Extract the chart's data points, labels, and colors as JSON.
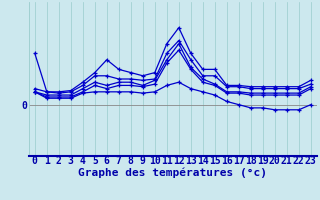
{
  "title": "",
  "xlabel": "Graphe des températures (°c)",
  "ylabel": "",
  "background_color": "#cce8ee",
  "line_color": "#0000cc",
  "grid_color": "#99cccc",
  "axis_color": "#0000aa",
  "x": [
    0,
    1,
    2,
    3,
    4,
    5,
    6,
    7,
    8,
    9,
    10,
    11,
    12,
    13,
    14,
    15,
    16,
    17,
    18,
    19,
    20,
    21,
    22,
    23
  ],
  "line1": [
    8.0,
    2.0,
    2.0,
    2.2,
    3.5,
    5.0,
    7.0,
    5.5,
    5.0,
    4.5,
    5.0,
    9.5,
    12.0,
    8.0,
    5.5,
    5.5,
    3.0,
    3.0,
    2.8,
    2.8,
    2.8,
    2.8,
    2.8,
    3.8
  ],
  "line2": [
    2.5,
    2.0,
    1.8,
    2.0,
    3.0,
    4.5,
    4.5,
    4.0,
    4.0,
    3.8,
    4.0,
    8.0,
    10.0,
    7.0,
    4.5,
    4.5,
    2.8,
    2.8,
    2.5,
    2.5,
    2.5,
    2.5,
    2.5,
    3.2
  ],
  "line3": [
    2.0,
    1.5,
    1.5,
    1.5,
    2.5,
    3.5,
    3.0,
    3.5,
    3.5,
    3.0,
    3.8,
    7.0,
    9.5,
    5.8,
    4.0,
    3.2,
    2.0,
    2.0,
    1.8,
    1.8,
    1.8,
    1.8,
    1.8,
    2.8
  ],
  "line4": [
    2.0,
    1.2,
    1.2,
    1.2,
    2.0,
    3.0,
    2.5,
    3.0,
    3.0,
    2.8,
    3.2,
    6.5,
    8.5,
    5.5,
    3.5,
    3.0,
    1.8,
    1.8,
    1.5,
    1.5,
    1.5,
    1.5,
    1.5,
    2.5
  ],
  "line5": [
    2.0,
    1.0,
    1.0,
    1.0,
    1.8,
    2.0,
    2.0,
    2.0,
    2.0,
    1.8,
    2.0,
    3.0,
    3.5,
    2.5,
    2.0,
    1.5,
    0.5,
    0.0,
    -0.5,
    -0.5,
    -0.8,
    -0.8,
    -0.8,
    0.0
  ],
  "ylim": [
    -8,
    16
  ],
  "xlim": [
    -0.5,
    23.5
  ],
  "xtick_labels": [
    "0",
    "1",
    "2",
    "3",
    "4",
    "5",
    "6",
    "7",
    "8",
    "9",
    "10",
    "11",
    "12",
    "13",
    "14",
    "15",
    "16",
    "17",
    "18",
    "19",
    "20",
    "21",
    "22",
    "23"
  ],
  "zero_line_color": "#888888",
  "tick_fontsize": 7,
  "xlabel_fontsize": 8
}
